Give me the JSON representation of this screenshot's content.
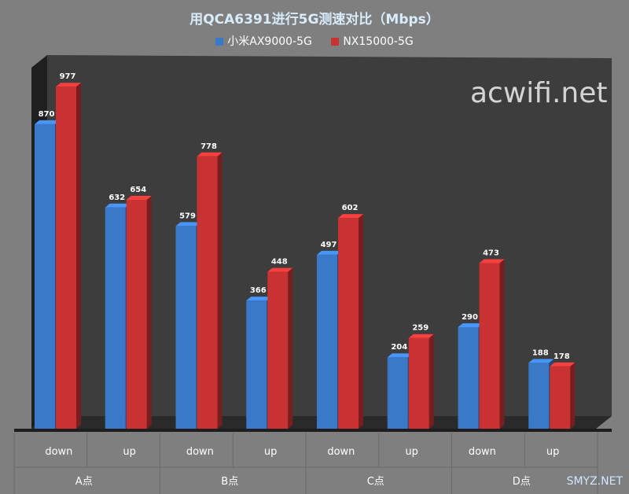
{
  "chart_data": {
    "type": "bar",
    "title": "用QCA6391进行5G测速对比（Mbps）",
    "groups": [
      "A点",
      "B点",
      "C点",
      "D点"
    ],
    "categories": [
      "down",
      "up",
      "down",
      "up",
      "down",
      "up",
      "down",
      "up"
    ],
    "series": [
      {
        "name": "小米AX9000-5G",
        "color": "#3a78c8",
        "values": [
          870,
          632,
          579,
          366,
          497,
          204,
          290,
          188
        ]
      },
      {
        "name": "NX15000-5G",
        "color": "#c83232",
        "values": [
          977,
          654,
          778,
          448,
          602,
          259,
          473,
          178
        ]
      }
    ],
    "ylim": [
      0,
      1000
    ],
    "grid": false,
    "legend": "top",
    "background": "#3d3d3d"
  },
  "watermark": "acwifi.net",
  "footer_mark": "SMYZ.NET"
}
